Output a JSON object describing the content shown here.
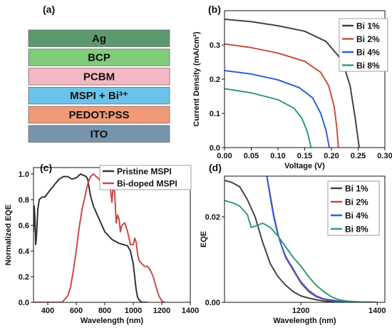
{
  "panels": {
    "a": "(a)",
    "b": "(b)",
    "c": "(c)",
    "d": "(d)"
  },
  "stack": {
    "layers": [
      {
        "name": "Ag",
        "color": "#5c9a6e"
      },
      {
        "name": "BCP",
        "color": "#7fcc7a"
      },
      {
        "name": "PCBM",
        "color": "#f4b8c4"
      },
      {
        "name": "MSPI + Bi³⁺",
        "color": "#6cc3ea"
      },
      {
        "name": "PEDOT:PSS",
        "color": "#f29a76"
      },
      {
        "name": "ITO",
        "color": "#7794ac"
      }
    ]
  },
  "colors": {
    "bi1": "#444444",
    "bi2": "#c8503a",
    "bi4": "#2f5fd8",
    "bi8": "#2f9e72",
    "pristine": "#333333",
    "doped": "#d04848"
  },
  "chart_data": [
    {
      "id": "b",
      "type": "line",
      "xlabel": "Voltage (V)",
      "ylabel": "Current Density (mA/cm²)",
      "xlim": [
        0,
        0.3
      ],
      "ylim": [
        0,
        0.4
      ],
      "xticks": [
        "0.00",
        "0.05",
        "0.10",
        "0.15",
        "0.20",
        "0.25",
        "0.30"
      ],
      "yticks": [
        "0.0",
        "0.1",
        "0.2",
        "0.3"
      ],
      "legend_position": "top-right",
      "series": [
        {
          "name": "Bi 1%",
          "color": "#444444",
          "x": [
            0,
            0.05,
            0.1,
            0.15,
            0.19,
            0.22,
            0.235,
            0.245,
            0.252
          ],
          "y": [
            0.375,
            0.368,
            0.356,
            0.34,
            0.31,
            0.255,
            0.18,
            0.08,
            0.0
          ]
        },
        {
          "name": "Bi 2%",
          "color": "#c8503a",
          "x": [
            0,
            0.05,
            0.1,
            0.15,
            0.18,
            0.195,
            0.205,
            0.21,
            0.213
          ],
          "y": [
            0.303,
            0.292,
            0.276,
            0.252,
            0.22,
            0.18,
            0.12,
            0.06,
            0.0
          ]
        },
        {
          "name": "Bi 4%",
          "color": "#2f5fd8",
          "x": [
            0,
            0.05,
            0.1,
            0.14,
            0.165,
            0.18,
            0.19,
            0.196
          ],
          "y": [
            0.225,
            0.215,
            0.198,
            0.175,
            0.145,
            0.1,
            0.05,
            0.0
          ]
        },
        {
          "name": "Bi 8%",
          "color": "#2f9e72",
          "x": [
            0,
            0.05,
            0.1,
            0.13,
            0.145,
            0.155,
            0.162
          ],
          "y": [
            0.172,
            0.16,
            0.14,
            0.115,
            0.085,
            0.045,
            0.0
          ]
        }
      ]
    },
    {
      "id": "c",
      "type": "line",
      "xlabel": "Wavelength (nm)",
      "ylabel": "Normalized EQE",
      "xlim": [
        300,
        1400
      ],
      "ylim": [
        0,
        1.05
      ],
      "xticks": [
        "400",
        "600",
        "800",
        "1000",
        "1200",
        "1400"
      ],
      "yticks": [
        "0.0",
        "0.2",
        "0.4",
        "0.6",
        "0.8",
        "1.0"
      ],
      "legend_position": "top-right",
      "series": [
        {
          "name": "Pristine MSPI",
          "color": "#333333",
          "x": [
            300,
            305,
            310,
            315,
            320,
            330,
            340,
            360,
            380,
            400,
            420,
            450,
            480,
            510,
            540,
            570,
            600,
            630,
            650,
            670,
            680,
            700,
            720,
            740,
            760,
            800,
            850,
            900,
            930,
            960,
            980,
            1000,
            1010,
            1020,
            1030,
            1040,
            1050,
            1060,
            1100
          ],
          "y": [
            0.55,
            0.75,
            0.65,
            0.45,
            0.5,
            0.72,
            0.8,
            0.82,
            0.82,
            0.85,
            0.88,
            0.92,
            0.96,
            0.98,
            0.98,
            0.96,
            0.97,
            1.0,
            0.99,
            0.98,
            0.96,
            0.83,
            0.75,
            0.7,
            0.65,
            0.55,
            0.49,
            0.46,
            0.45,
            0.44,
            0.4,
            0.3,
            0.2,
            0.1,
            0.04,
            0.02,
            0.01,
            0.0,
            0.0
          ]
        },
        {
          "name": "Bi-doped MSPI",
          "color": "#d04848",
          "x": [
            300,
            500,
            540,
            560,
            580,
            600,
            620,
            640,
            660,
            680,
            700,
            720,
            740,
            760,
            780,
            800,
            820,
            830,
            840,
            850,
            860,
            870,
            880,
            890,
            900,
            910,
            920,
            940,
            960,
            980,
            1000,
            1010,
            1020,
            1030,
            1040,
            1060,
            1080,
            1100,
            1120,
            1140,
            1160,
            1180,
            1200,
            1220
          ],
          "y": [
            0.0,
            0.0,
            0.05,
            0.12,
            0.25,
            0.4,
            0.58,
            0.72,
            0.82,
            0.92,
            0.98,
            1.0,
            0.98,
            0.96,
            0.93,
            0.95,
            0.9,
            0.97,
            0.88,
            0.78,
            0.92,
            0.85,
            0.62,
            0.68,
            0.65,
            0.55,
            0.6,
            0.62,
            0.55,
            0.45,
            0.45,
            0.5,
            0.47,
            0.38,
            0.33,
            0.3,
            0.28,
            0.28,
            0.25,
            0.2,
            0.12,
            0.05,
            0.01,
            0.0
          ]
        }
      ]
    },
    {
      "id": "d",
      "type": "line",
      "xlabel": "Wavelength (nm)",
      "ylabel": "EQE",
      "xlim": [
        1000,
        1420
      ],
      "ylim": [
        0,
        0.0295
      ],
      "xticks": [
        "1200",
        "1400"
      ],
      "xtick_values": [
        1200,
        1400
      ],
      "yticks": [
        "0.00",
        "0.02"
      ],
      "ytick_values": [
        0,
        0.02
      ],
      "legend_position": "top-right",
      "series": [
        {
          "name": "Bi 1%",
          "color": "#444444",
          "x": [
            1000,
            1020,
            1040,
            1060,
            1080,
            1100,
            1120,
            1140,
            1160,
            1180,
            1200,
            1220,
            1240,
            1260,
            1300,
            1350,
            1400
          ],
          "y": [
            0.0285,
            0.028,
            0.027,
            0.024,
            0.02,
            0.014,
            0.009,
            0.006,
            0.004,
            0.0025,
            0.0015,
            0.001,
            0.0006,
            0.0003,
            0.0001,
            0.0,
            0.0
          ]
        },
        {
          "name": "Bi 2%",
          "color": "#c8503a",
          "x": [
            1110,
            1120,
            1130,
            1140,
            1150,
            1160,
            1170,
            1180,
            1190,
            1200,
            1220,
            1240,
            1260,
            1300,
            1350,
            1400
          ],
          "y": [
            0.03,
            0.025,
            0.02,
            0.016,
            0.013,
            0.0105,
            0.009,
            0.0075,
            0.006,
            0.0045,
            0.0025,
            0.0013,
            0.0007,
            0.0002,
            0.0001,
            0.0
          ]
        },
        {
          "name": "Bi 4%",
          "color": "#2f5fd8",
          "x": [
            1110,
            1120,
            1130,
            1140,
            1150,
            1160,
            1170,
            1180,
            1190,
            1200,
            1220,
            1240,
            1260,
            1300,
            1350,
            1400
          ],
          "y": [
            0.03,
            0.0245,
            0.0195,
            0.0158,
            0.013,
            0.0108,
            0.0092,
            0.0078,
            0.0062,
            0.0048,
            0.0028,
            0.0015,
            0.0008,
            0.0003,
            0.0001,
            0.0
          ]
        },
        {
          "name": "Bi 8%",
          "color": "#2f9e72",
          "x": [
            1000,
            1020,
            1040,
            1060,
            1070,
            1080,
            1100,
            1120,
            1140,
            1160,
            1180,
            1200,
            1220,
            1240,
            1260,
            1280,
            1300,
            1320,
            1350,
            1400
          ],
          "y": [
            0.0238,
            0.0233,
            0.0225,
            0.0205,
            0.0175,
            0.0178,
            0.0185,
            0.0175,
            0.0155,
            0.013,
            0.0105,
            0.0085,
            0.006,
            0.004,
            0.0025,
            0.0013,
            0.0006,
            0.0003,
            0.0001,
            0.0
          ]
        }
      ]
    }
  ]
}
